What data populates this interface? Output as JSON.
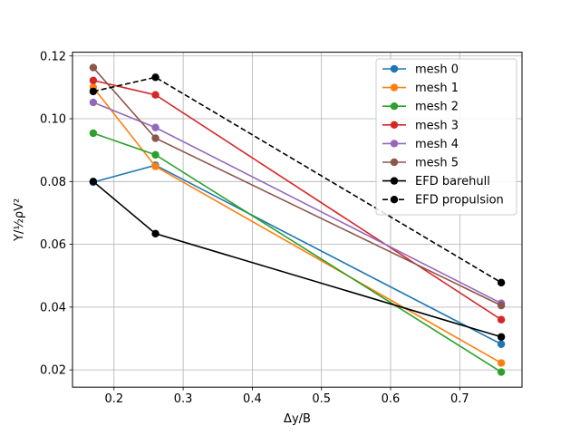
{
  "chart_data": {
    "type": "line",
    "xlabel": "Δy/B",
    "ylabel": "Y/½ρV²",
    "xlim": [
      0.14,
      0.79
    ],
    "ylim": [
      0.0145,
      0.1212
    ],
    "x_ticks": [
      0.2,
      0.3,
      0.4,
      0.5,
      0.6,
      0.7
    ],
    "x_tick_labels": [
      "0.2",
      "0.3",
      "0.4",
      "0.5",
      "0.6",
      "0.7"
    ],
    "y_ticks": [
      0.02,
      0.04,
      0.06,
      0.08,
      0.1,
      0.12
    ],
    "y_tick_labels": [
      "0.02",
      "0.04",
      "0.06",
      "0.08",
      "0.10",
      "0.12"
    ],
    "grid": true,
    "legend_position": "top-right",
    "series": [
      {
        "name": "mesh 0",
        "color": "#1f77b4",
        "dash": "solid",
        "x": [
          0.17,
          0.26,
          0.76
        ],
        "y": [
          0.0798,
          0.0852,
          0.0282
        ]
      },
      {
        "name": "mesh 1",
        "color": "#ff7f0e",
        "dash": "solid",
        "x": [
          0.17,
          0.26,
          0.76
        ],
        "y": [
          0.11,
          0.0848,
          0.0222
        ]
      },
      {
        "name": "mesh 2",
        "color": "#2ca02c",
        "dash": "solid",
        "x": [
          0.17,
          0.26,
          0.76
        ],
        "y": [
          0.0954,
          0.0885,
          0.0193
        ]
      },
      {
        "name": "mesh 3",
        "color": "#d62728",
        "dash": "solid",
        "x": [
          0.17,
          0.26,
          0.76
        ],
        "y": [
          0.1122,
          0.1076,
          0.036
        ]
      },
      {
        "name": "mesh 4",
        "color": "#9467bd",
        "dash": "solid",
        "x": [
          0.17,
          0.26,
          0.76
        ],
        "y": [
          0.1052,
          0.0972,
          0.0412
        ]
      },
      {
        "name": "mesh 5",
        "color": "#8c564b",
        "dash": "solid",
        "x": [
          0.17,
          0.26,
          0.76
        ],
        "y": [
          0.1163,
          0.0938,
          0.0405
        ]
      },
      {
        "name": "EFD barehull",
        "color": "#000000",
        "dash": "solid",
        "x": [
          0.17,
          0.26,
          0.76
        ],
        "y": [
          0.08,
          0.0634,
          0.0305
        ]
      },
      {
        "name": "EFD propulsion",
        "color": "#000000",
        "dash": "dashed",
        "x": [
          0.17,
          0.26,
          0.76
        ],
        "y": [
          0.1087,
          0.1132,
          0.0478
        ]
      }
    ]
  }
}
